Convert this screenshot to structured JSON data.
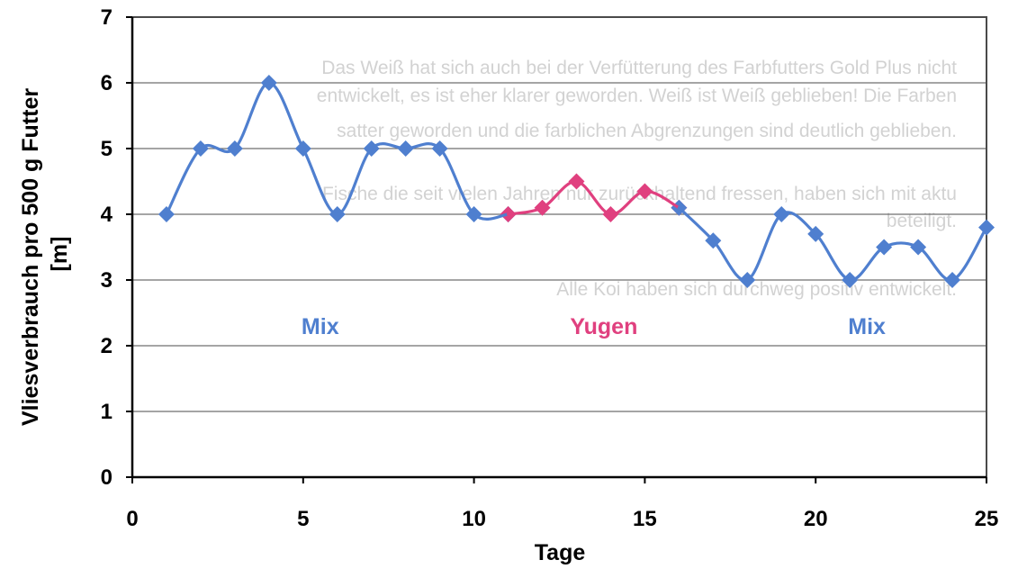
{
  "chart_data": {
    "type": "line",
    "title": "",
    "xlabel": "Tage",
    "ylabel_lines": [
      "Vliesverbrauch pro 500 g Futter",
      "[m]"
    ],
    "xlim": [
      0,
      25
    ],
    "ylim": [
      0,
      7
    ],
    "xticks": [
      0,
      5,
      10,
      15,
      20,
      25
    ],
    "yticks": [
      0,
      1,
      2,
      3,
      4,
      5,
      6,
      7
    ],
    "grid": "horizontal",
    "legend": "none",
    "series": [
      {
        "name": "Mix",
        "color": "#4f7fcf",
        "points": [
          [
            1,
            4
          ],
          [
            2,
            5
          ],
          [
            3,
            5
          ],
          [
            4,
            6
          ],
          [
            5,
            5
          ],
          [
            6,
            4
          ],
          [
            7,
            5
          ],
          [
            8,
            5
          ],
          [
            9,
            5
          ],
          [
            10,
            4
          ],
          [
            11,
            4
          ]
        ]
      },
      {
        "name": "Yugen",
        "color": "#e0407f",
        "points": [
          [
            11,
            4
          ],
          [
            12,
            4.1
          ],
          [
            13,
            4.5
          ],
          [
            14,
            4
          ],
          [
            15,
            4.35
          ],
          [
            16,
            4.1
          ]
        ]
      },
      {
        "name": "Mix",
        "color": "#4f7fcf",
        "points": [
          [
            16,
            4.1
          ],
          [
            17,
            3.6
          ],
          [
            18,
            3
          ],
          [
            19,
            4
          ],
          [
            20,
            3.7
          ],
          [
            21,
            3
          ],
          [
            22,
            3.5
          ],
          [
            23,
            3.5
          ],
          [
            24,
            3
          ],
          [
            25,
            3.8
          ]
        ]
      }
    ],
    "annotations": [
      {
        "text": "Mix",
        "x": 5.5,
        "y": 2.3,
        "color": "#4f7fcf"
      },
      {
        "text": "Yugen",
        "x": 13.8,
        "y": 2.3,
        "color": "#e0407f"
      },
      {
        "text": "Mix",
        "x": 21.5,
        "y": 2.3,
        "color": "#4f7fcf"
      }
    ]
  },
  "background_text": [
    "Das Weiß hat sich auch bei der Verfütterung des Farbfutters Gold Plus nicht",
    "entwickelt, es ist eher klarer geworden. Weiß ist Weiß geblieben! Die Farben",
    "satter geworden und die farblichen Abgrenzungen sind deutlich geblieben.",
    "Fische die seit vielen Jahren nur zurückhaltend fressen, haben sich mit aktu",
    "beteiligt.",
    "Alle Koi haben sich durchweg positiv entwickelt."
  ]
}
